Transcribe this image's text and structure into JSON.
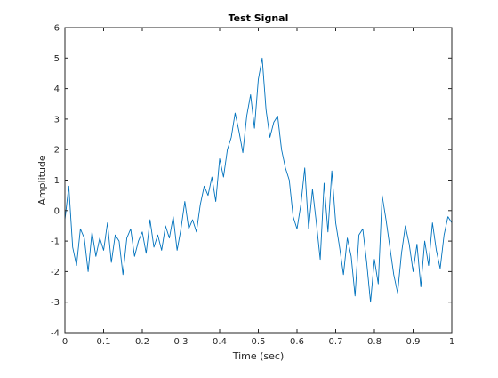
{
  "chart_data": {
    "type": "line",
    "title": "Test Signal",
    "xlabel": "Time (sec)",
    "ylabel": "Amplitude",
    "xlim": [
      0,
      1
    ],
    "ylim": [
      -4,
      6
    ],
    "xticks": [
      0,
      0.1,
      0.2,
      0.3,
      0.4,
      0.5,
      0.6,
      0.7,
      0.8,
      0.9,
      1
    ],
    "xtick_labels": [
      "0",
      "0.1",
      "0.2",
      "0.3",
      "0.4",
      "0.5",
      "0.6",
      "0.7",
      "0.8",
      "0.9",
      "1"
    ],
    "yticks": [
      -4,
      -3,
      -2,
      -1,
      0,
      1,
      2,
      3,
      4,
      5,
      6
    ],
    "ytick_labels": [
      "-4",
      "-3",
      "-2",
      "-1",
      "0",
      "1",
      "2",
      "3",
      "4",
      "5",
      "6"
    ],
    "grid": false,
    "line_color": "#0072BD",
    "series": [
      {
        "x": [
          0,
          0.01,
          0.02,
          0.03,
          0.04,
          0.05,
          0.06,
          0.07,
          0.08,
          0.09,
          0.1,
          0.11,
          0.12,
          0.13,
          0.14,
          0.15,
          0.16,
          0.17,
          0.18,
          0.19,
          0.2,
          0.21,
          0.22,
          0.23,
          0.24,
          0.25,
          0.26,
          0.27,
          0.28,
          0.29,
          0.3,
          0.31,
          0.32,
          0.33,
          0.34,
          0.35,
          0.36,
          0.37,
          0.38,
          0.39,
          0.4,
          0.41,
          0.42,
          0.43,
          0.44,
          0.45,
          0.46,
          0.47,
          0.48,
          0.49,
          0.5,
          0.51,
          0.52,
          0.53,
          0.54,
          0.55,
          0.56,
          0.57,
          0.58,
          0.59,
          0.6,
          0.61,
          0.62,
          0.63,
          0.64,
          0.65,
          0.66,
          0.67,
          0.68,
          0.69,
          0.7,
          0.71,
          0.72,
          0.73,
          0.74,
          0.75,
          0.76,
          0.77,
          0.78,
          0.79,
          0.8,
          0.81,
          0.82,
          0.83,
          0.84,
          0.85,
          0.86,
          0.87,
          0.88,
          0.89,
          0.9,
          0.91,
          0.92,
          0.93,
          0.94,
          0.95,
          0.96,
          0.97,
          0.98,
          0.99,
          1.0
        ],
        "y": [
          -0.3,
          0.8,
          -1.2,
          -1.8,
          -0.6,
          -0.9,
          -2.0,
          -0.7,
          -1.5,
          -0.9,
          -1.3,
          -0.4,
          -1.7,
          -0.8,
          -1.0,
          -2.1,
          -0.9,
          -0.6,
          -1.5,
          -1.0,
          -0.7,
          -1.4,
          -0.3,
          -1.2,
          -0.8,
          -1.3,
          -0.5,
          -0.9,
          -0.2,
          -1.3,
          -0.6,
          0.3,
          -0.6,
          -0.3,
          -0.7,
          0.2,
          0.8,
          0.5,
          1.1,
          0.3,
          1.7,
          1.1,
          2.0,
          2.4,
          3.2,
          2.6,
          1.9,
          3.1,
          3.8,
          2.7,
          4.3,
          5.0,
          3.3,
          2.4,
          2.9,
          3.1,
          2.0,
          1.4,
          1.0,
          -0.2,
          -0.6,
          0.2,
          1.4,
          -0.6,
          0.7,
          -0.4,
          -1.6,
          0.9,
          -0.7,
          1.3,
          -0.4,
          -1.2,
          -2.1,
          -0.9,
          -1.5,
          -2.8,
          -0.8,
          -0.6,
          -1.7,
          -3.0,
          -1.6,
          -2.4,
          0.5,
          -0.3,
          -1.2,
          -2.1,
          -2.7,
          -1.4,
          -0.5,
          -1.1,
          -2.0,
          -1.1,
          -2.5,
          -1.0,
          -1.8,
          -0.4,
          -1.3,
          -1.9,
          -0.8,
          -0.2,
          -0.4
        ]
      }
    ]
  }
}
